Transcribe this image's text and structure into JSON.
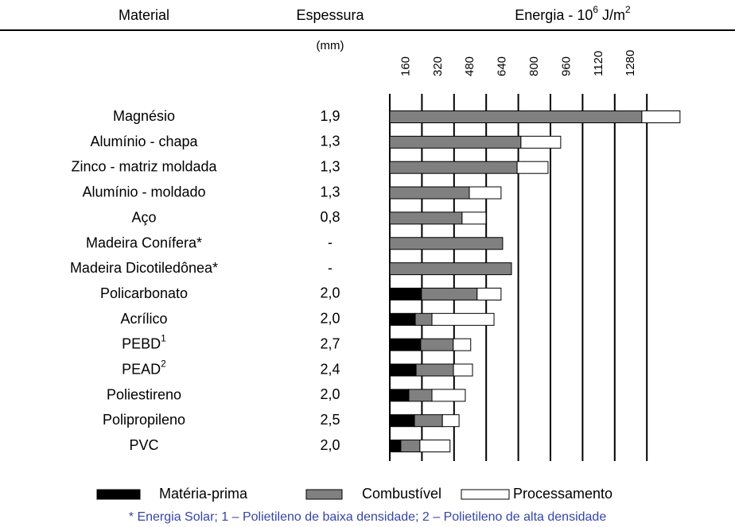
{
  "chart_data": {
    "type": "stacked_barh",
    "headers": [
      "Material",
      "Espessura"
    ],
    "thickness_unit": "(mm)",
    "x_label": [
      "Energia - 10",
      "6",
      " J/m",
      "2"
    ],
    "categories": [
      "Magnésio",
      "Alumínio - chapa",
      "Zinco - matriz moldada",
      "Alumínio - moldado",
      "Aço",
      "Madeira Conífera*",
      "Madeira Dicotiledônea*",
      "Policarbonato",
      "Acrílico",
      "PEBD",
      "PEAD",
      "Poliestireno",
      "Polipropileno",
      "PVC"
    ],
    "category_superscripts": [
      null,
      null,
      null,
      null,
      null,
      null,
      null,
      null,
      null,
      "1",
      "2",
      null,
      null,
      null
    ],
    "thickness": [
      "1,9",
      "1,3",
      "1,3",
      "1,3",
      "0,8",
      "-",
      "-",
      "2,0",
      "2,0",
      "2,7",
      "2,4",
      "2,0",
      "2,5",
      "2,0"
    ],
    "series": [
      {
        "name": "Matéria-prima",
        "color": "#000000",
        "values": [
          0,
          0,
          0,
          0,
          0,
          0,
          0,
          158,
          127,
          154,
          131,
          95,
          123,
          55
        ]
      },
      {
        "name": "Combustível",
        "color": "#808080",
        "values": [
          1255,
          653,
          634,
          396,
          360,
          562,
          606,
          277,
          83,
          162,
          186,
          115,
          139,
          95
        ]
      },
      {
        "name": "Processamento",
        "color": "#ffffff",
        "values": [
          190,
          198,
          154,
          158,
          119,
          0,
          0,
          119,
          309,
          87,
          95,
          166,
          83,
          150
        ]
      }
    ],
    "xlim": [
      0,
      1440
    ],
    "xticks": [
      160,
      320,
      480,
      640,
      800,
      960,
      1120,
      1280
    ],
    "grid": true,
    "footnote": "* Energia Solar; 1 – Polietileno de baixa densidade; 2 – Polietileno de alta densidade"
  }
}
